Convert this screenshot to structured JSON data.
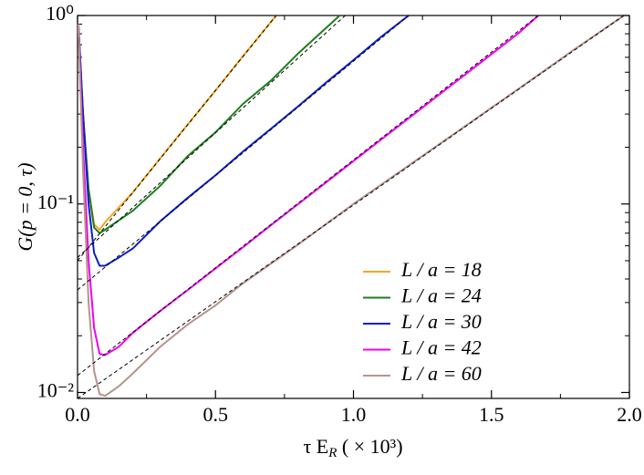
{
  "chart_data": {
    "type": "line",
    "y_label": "G(p = 0, τ)",
    "x_label": [
      "τ E",
      "R",
      " ( × 10³)"
    ],
    "log_y": true,
    "xlim": [
      0,
      2
    ],
    "ylim": [
      0.0093,
      1
    ],
    "xticks": [
      {
        "value": 0,
        "label": "0.0"
      },
      0.5,
      {
        "value": 1,
        "label": "1.0"
      },
      1.5,
      {
        "value": 2,
        "label": "2.0"
      }
    ],
    "xminorticks": [
      0.25,
      0.75,
      1.25,
      1.75
    ],
    "yticks": [
      {
        "value": 0.01,
        "label": "10⁻²"
      },
      {
        "value": 0.1,
        "label": "10⁻¹"
      },
      {
        "value": 1,
        "label": "10⁰"
      }
    ],
    "yminorticks": [
      0.02,
      0.03,
      0.04,
      0.05,
      0.06,
      0.07,
      0.08,
      0.09,
      0.2,
      0.3,
      0.4,
      0.5,
      0.6,
      0.7,
      0.8,
      0.9
    ],
    "series": [
      {
        "name": "L / a = 18",
        "color": "#f5a623",
        "x": [
          0.003,
          0.02,
          0.04,
          0.06,
          0.08,
          0.1,
          0.2,
          0.3,
          0.4,
          0.5,
          0.6,
          0.72
        ],
        "values": [
          0.9,
          0.3,
          0.12,
          0.078,
          0.073,
          0.08,
          0.115,
          0.175,
          0.265,
          0.4,
          0.61,
          1.0
        ]
      },
      {
        "name": "L / a = 24",
        "color": "#1e7d1e",
        "x": [
          0.003,
          0.02,
          0.04,
          0.06,
          0.08,
          0.1,
          0.2,
          0.3,
          0.4,
          0.5,
          0.6,
          0.7,
          0.8,
          0.95
        ],
        "values": [
          0.9,
          0.3,
          0.12,
          0.075,
          0.07,
          0.073,
          0.092,
          0.125,
          0.18,
          0.24,
          0.34,
          0.45,
          0.63,
          1.0
        ]
      },
      {
        "name": "L / a = 30",
        "color": "#0a1ecc",
        "x": [
          0.003,
          0.02,
          0.04,
          0.06,
          0.08,
          0.1,
          0.15,
          0.2,
          0.3,
          0.4,
          0.5,
          0.6,
          0.7,
          0.8,
          0.9,
          1.0,
          1.1,
          1.2
        ],
        "values": [
          0.9,
          0.3,
          0.1,
          0.055,
          0.047,
          0.047,
          0.052,
          0.058,
          0.081,
          0.108,
          0.142,
          0.19,
          0.25,
          0.33,
          0.44,
          0.58,
          0.77,
          1.0
        ]
      },
      {
        "name": "L / a = 42",
        "color": "#f000f0",
        "x": [
          0.003,
          0.02,
          0.04,
          0.06,
          0.08,
          0.1,
          0.15,
          0.2,
          0.3,
          0.4,
          0.5,
          0.6,
          0.7,
          0.8,
          0.9,
          1.0,
          1.2,
          1.4,
          1.6,
          1.67
        ],
        "values": [
          0.9,
          0.2,
          0.05,
          0.022,
          0.016,
          0.0158,
          0.0175,
          0.0207,
          0.0271,
          0.035,
          0.0455,
          0.059,
          0.077,
          0.1,
          0.13,
          0.169,
          0.285,
          0.48,
          0.81,
          1.0
        ]
      },
      {
        "name": "L / a = 60",
        "color": "#b8928c",
        "x": [
          0.003,
          0.02,
          0.04,
          0.06,
          0.08,
          0.1,
          0.15,
          0.2,
          0.3,
          0.4,
          0.5,
          0.6,
          0.8,
          1.0,
          1.2,
          1.4,
          1.6,
          1.8,
          1.98
        ],
        "values": [
          0.9,
          0.15,
          0.03,
          0.013,
          0.0098,
          0.0096,
          0.0108,
          0.0126,
          0.0175,
          0.023,
          0.029,
          0.038,
          0.061,
          0.1,
          0.16,
          0.256,
          0.41,
          0.66,
          1.0
        ]
      }
    ],
    "fits": [
      {
        "color": "#000000",
        "x": [
          0,
          0.72
        ],
        "values": [
          0.05,
          1
        ]
      },
      {
        "color": "#000000",
        "x": [
          0,
          0.97
        ],
        "values": [
          0.052,
          1
        ]
      },
      {
        "color": "#000000",
        "x": [
          0,
          1.2
        ],
        "values": [
          0.035,
          1
        ]
      },
      {
        "color": "#000000",
        "x": [
          0,
          1.67
        ],
        "values": [
          0.0123,
          1
        ]
      },
      {
        "color": "#000000",
        "x": [
          0,
          1.98
        ],
        "values": [
          0.0093,
          1
        ]
      }
    ],
    "legend": "lower-right"
  }
}
